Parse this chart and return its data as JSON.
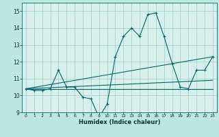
{
  "xlabel": "Humidex (Indice chaleur)",
  "bg_color": "#bde8e0",
  "plot_bg_color": "#d8f0eb",
  "grid_color": "#a0ccc4",
  "line_color": "#006666",
  "xlim": [
    -0.5,
    23.5
  ],
  "ylim": [
    9.0,
    15.5
  ],
  "yticks": [
    9,
    10,
    11,
    12,
    13,
    14,
    15
  ],
  "xticks": [
    0,
    1,
    2,
    3,
    4,
    5,
    6,
    7,
    8,
    9,
    10,
    11,
    12,
    13,
    14,
    15,
    16,
    17,
    18,
    19,
    20,
    21,
    22,
    23
  ],
  "series": [
    {
      "x": [
        0,
        1,
        2,
        3,
        4,
        5,
        6,
        7,
        8,
        9,
        10,
        11,
        12,
        13,
        14,
        15,
        16,
        17,
        18,
        19,
        20,
        21,
        22,
        23
      ],
      "y": [
        10.4,
        10.3,
        10.3,
        10.4,
        11.5,
        10.5,
        10.5,
        9.9,
        9.8,
        8.7,
        9.5,
        12.3,
        13.5,
        14.0,
        13.5,
        14.8,
        14.9,
        13.5,
        11.9,
        10.5,
        10.4,
        11.5,
        11.5,
        12.3
      ],
      "marker": true
    },
    {
      "x": [
        0,
        23
      ],
      "y": [
        10.4,
        10.4
      ],
      "marker": false
    },
    {
      "x": [
        0,
        23
      ],
      "y": [
        10.4,
        10.9
      ],
      "marker": false
    },
    {
      "x": [
        0,
        23
      ],
      "y": [
        10.4,
        12.3
      ],
      "marker": false
    }
  ]
}
